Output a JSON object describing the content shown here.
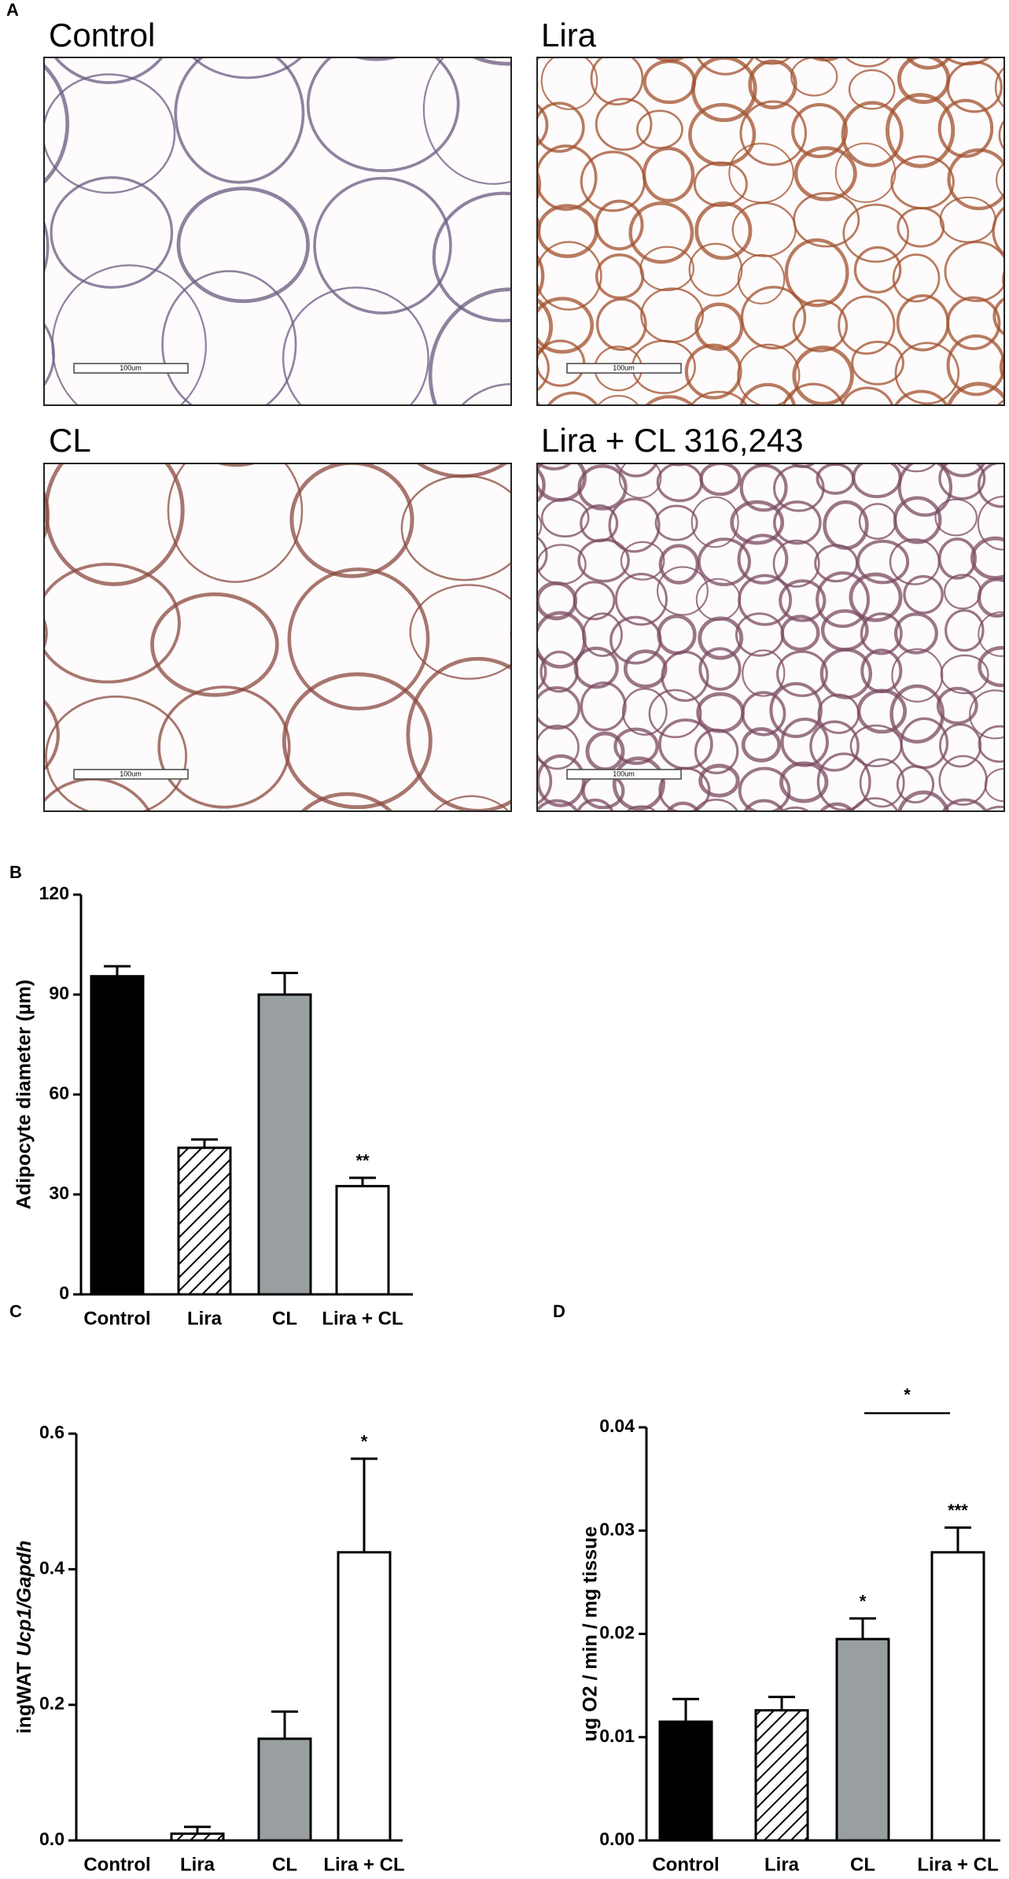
{
  "panel_a": {
    "letter": "A",
    "images": [
      {
        "title": "Control",
        "scale_bar": "100um"
      },
      {
        "title": "Lira",
        "scale_bar": "100um"
      },
      {
        "title": "CL",
        "scale_bar": "100um"
      },
      {
        "title": "Lira + CL 316,243",
        "scale_bar": "100um"
      }
    ]
  },
  "chart_data": [
    {
      "type": "bar",
      "panel": "B",
      "ylabel": "Adipocyte diameter (µm)",
      "categories": [
        "Control",
        "Lira",
        "CL",
        "Lira + CL"
      ],
      "values": [
        95.5,
        44,
        90,
        32.5
      ],
      "errors": [
        3,
        2.5,
        6.5,
        2.5
      ],
      "colors": [
        "#000000",
        "#ffffff",
        "#999ea0",
        "#ffffff"
      ],
      "hatched": [
        false,
        true,
        false,
        false
      ],
      "significance": [
        null,
        null,
        null,
        "**"
      ],
      "ylim": [
        0,
        120
      ],
      "yticks": [
        0,
        30,
        60,
        90,
        120
      ]
    },
    {
      "type": "bar",
      "panel": "C",
      "ylabel": [
        "ingWAT",
        "Ucp1/Gapdh"
      ],
      "categories": [
        "Control",
        "Lira",
        "CL",
        "Lira + CL"
      ],
      "values": [
        0,
        0.01,
        0.15,
        0.425
      ],
      "errors": [
        0,
        0.01,
        0.04,
        0.138
      ],
      "colors": [
        "#000000",
        "#ffffff",
        "#999ea0",
        "#ffffff"
      ],
      "hatched": [
        false,
        true,
        false,
        false
      ],
      "significance": [
        null,
        null,
        null,
        "*"
      ],
      "ylim": [
        0,
        0.6
      ],
      "yticks": [
        {
          "value": 0,
          "label": "0.0"
        },
        0.2,
        0.4,
        0.6
      ]
    },
    {
      "type": "bar",
      "panel": "D",
      "ylabel": "ug O2 / min / mg tissue",
      "categories": [
        "Control",
        "Lira",
        "CL",
        "Lira + CL"
      ],
      "values": [
        0.0115,
        0.0126,
        0.0195,
        0.0279
      ],
      "errors": [
        0.0022,
        0.0013,
        0.002,
        0.0024
      ],
      "colors": [
        "#000000",
        "#ffffff",
        "#999ea0",
        "#ffffff"
      ],
      "hatched": [
        false,
        true,
        false,
        false
      ],
      "significance": [
        null,
        null,
        "*",
        "***"
      ],
      "bracket": {
        "from": 2,
        "to": 3,
        "text": "*"
      },
      "ylim": [
        0,
        0.04
      ],
      "yticks": [
        {
          "value": 0,
          "label": "0.00"
        },
        0.01,
        0.02,
        0.03,
        0.04
      ]
    }
  ]
}
